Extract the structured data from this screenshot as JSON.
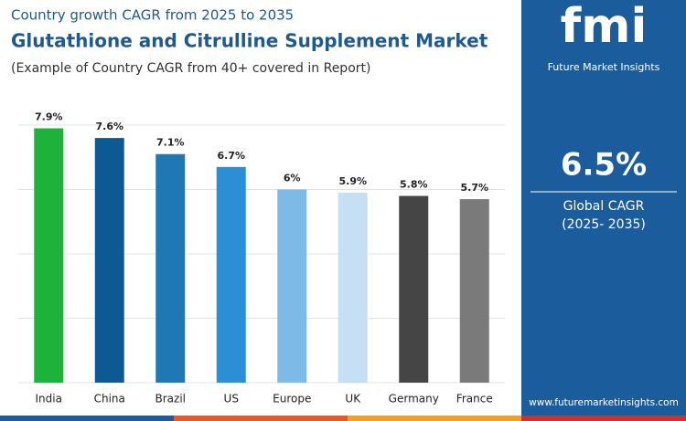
{
  "chart_data": {
    "type": "bar",
    "subtitle": "Country growth CAGR from 2025 to 2035",
    "title": "Glutathione and Citrulline Supplement Market",
    "caption": "(Example of Country CAGR from 40+ covered in Report)",
    "categories": [
      "India",
      "China",
      "Brazil",
      "US",
      "Europe",
      "UK",
      "Germany",
      "France"
    ],
    "values": [
      7.9,
      7.6,
      7.1,
      6.7,
      6.0,
      5.9,
      5.8,
      5.7
    ],
    "value_labels": [
      "7.9%",
      "7.6%",
      "7.1%",
      "6.7%",
      "6%",
      "5.9%",
      "5.8%",
      "5.7%"
    ],
    "colors": [
      "#1db33a",
      "#0d5a93",
      "#1f78b4",
      "#2b8fd6",
      "#7dbbe6",
      "#c5e0f4",
      "#454545",
      "#7a7a7a"
    ],
    "ylim": [
      0,
      8
    ],
    "yticks": [
      0,
      2,
      4,
      6,
      8
    ],
    "grid": true
  },
  "sidebar": {
    "logo": "fmi",
    "brand": "Future Market Insights",
    "stat": "6.5%",
    "stat_label": "Global CAGR",
    "period": "(2025- 2035)",
    "url": "www.futuremarketinsights.com"
  }
}
